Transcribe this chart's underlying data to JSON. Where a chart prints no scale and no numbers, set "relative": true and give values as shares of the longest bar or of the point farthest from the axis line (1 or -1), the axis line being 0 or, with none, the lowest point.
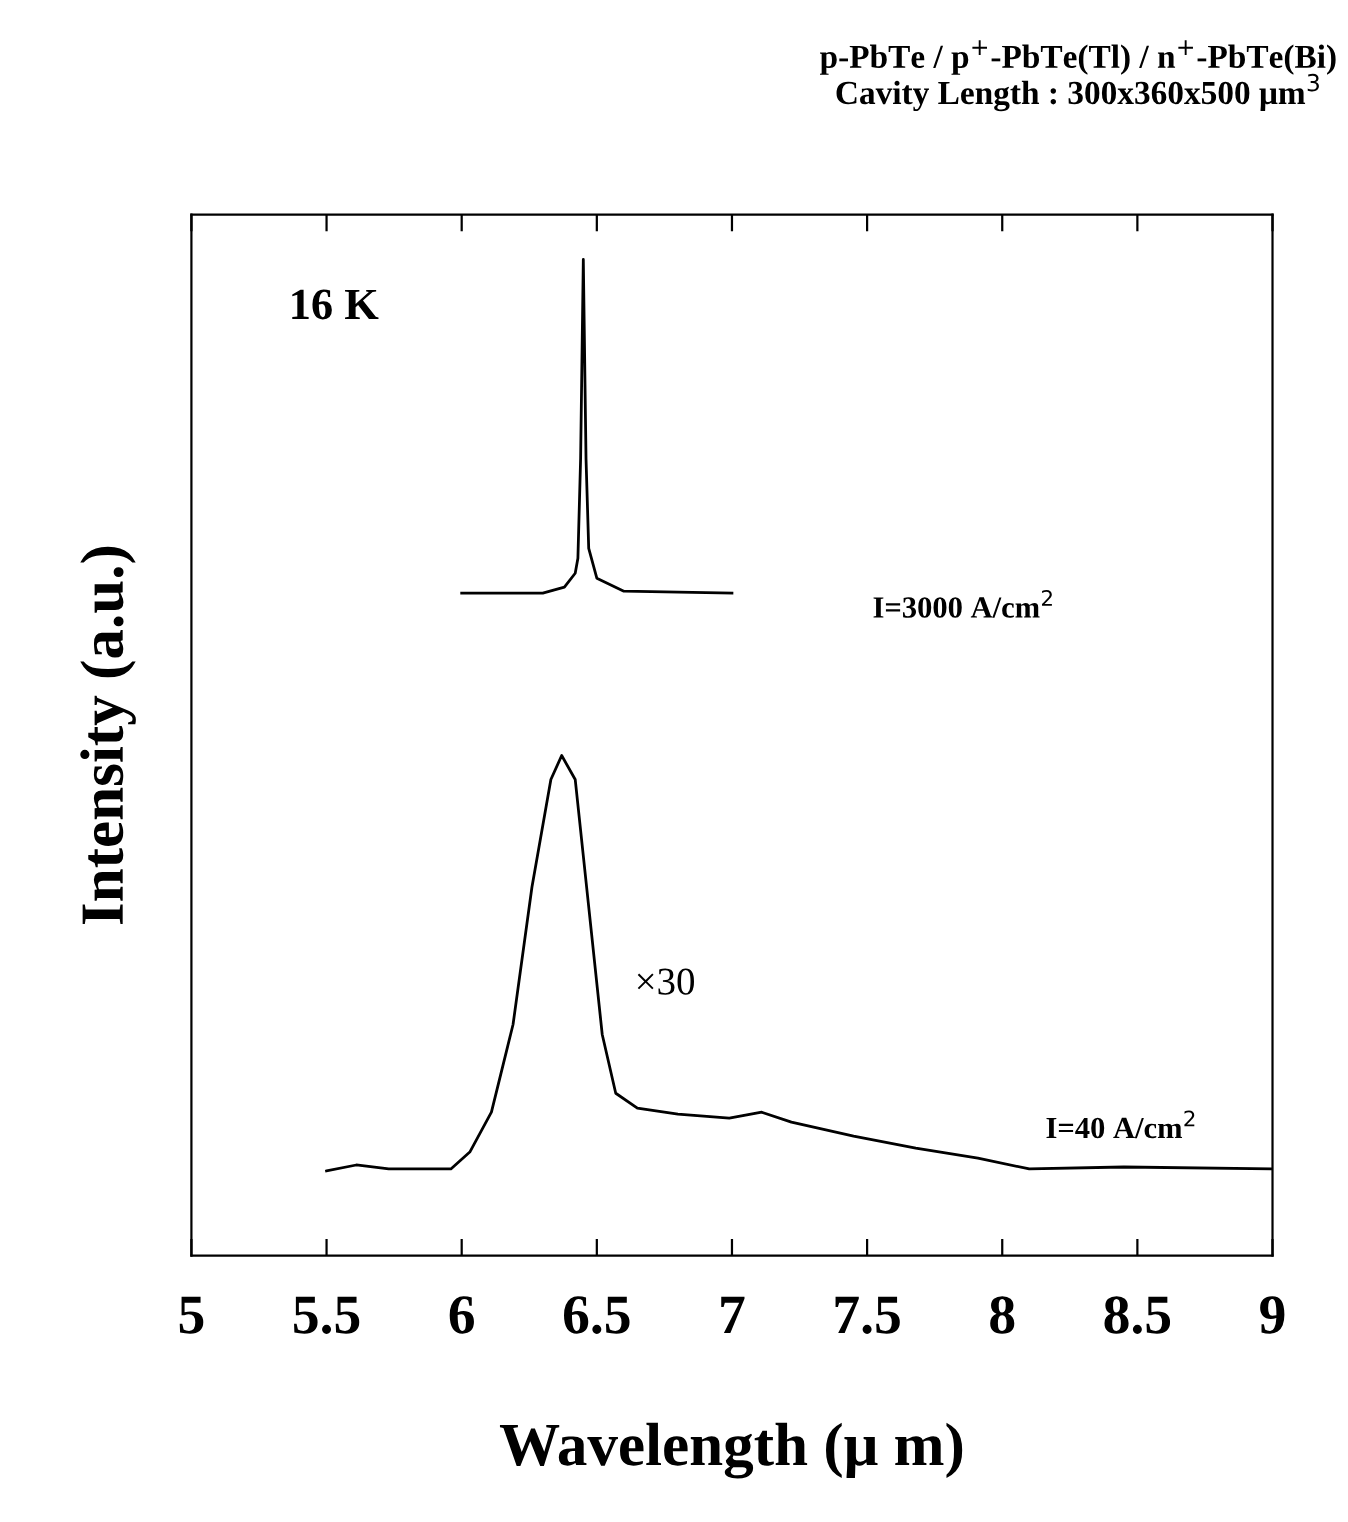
{
  "chart_data": {
    "type": "line",
    "relative": true,
    "title": "p-PbTe / p$^{+}$-PbTe(Tl) / n$^{+}$-PbTe(Bi)\nCavity Length : 300x360x500 μm$^{3}$",
    "xlabel": "Wavelength (μ m)",
    "ylabel": "Intensity (a.u.)",
    "xlim": [
      5,
      9
    ],
    "xticks": [
      5,
      5.5,
      6,
      6.5,
      7,
      7.5,
      8,
      8.5,
      9
    ],
    "annotations": [
      "16 K",
      "I=3000 A/cm$^{2}$",
      "×30",
      "I=40 A/cm$^{2}$"
    ],
    "series": [
      {
        "color": "#000000",
        "x": [
          6.0,
          6.3,
          6.38,
          6.42,
          6.43,
          6.44,
          6.45,
          6.46,
          6.47,
          6.5,
          6.6,
          7.0
        ],
        "values": [
          0.665,
          0.665,
          0.671,
          0.685,
          0.7,
          0.8,
          1.0,
          0.8,
          0.71,
          0.68,
          0.667,
          0.665
        ]
      },
      {
        "color": "#000000",
        "x": [
          5.5,
          5.61,
          5.73,
          5.96,
          6.03,
          6.11,
          6.19,
          6.26,
          6.33,
          6.37,
          6.42,
          6.47,
          6.52,
          6.57,
          6.65,
          6.8,
          6.99,
          7.11,
          7.22,
          7.45,
          7.68,
          7.91,
          8.1,
          8.45,
          9.0
        ],
        "values": [
          0.085,
          0.091,
          0.087,
          0.087,
          0.104,
          0.144,
          0.232,
          0.37,
          0.478,
          0.502,
          0.478,
          0.35,
          0.222,
          0.163,
          0.148,
          0.142,
          0.138,
          0.144,
          0.134,
          0.12,
          0.108,
          0.098,
          0.087,
          0.089,
          0.087
        ]
      }
    ]
  }
}
